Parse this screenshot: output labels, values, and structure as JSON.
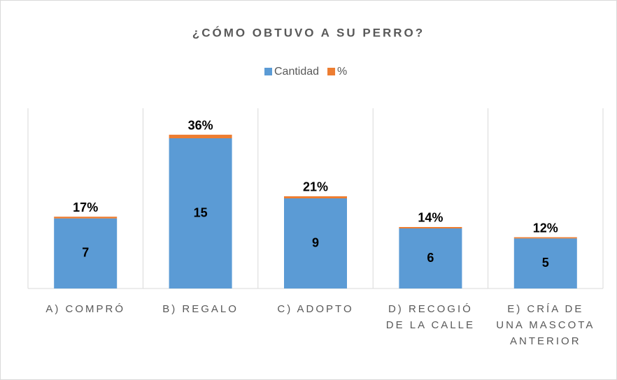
{
  "chart_data": {
    "type": "stacked-bar",
    "title": "¿CÓMO OBTUVO A SU PERRO?",
    "categories": [
      "A) COMPRÓ",
      "B) REGALO",
      "C) ADOPTO",
      "D) RECOGIÓ DE LA CALLE",
      "E) CRÍA DE UNA MASCOTA ANTERIOR"
    ],
    "series": [
      {
        "name": "Cantidad",
        "color": "#5b9bd5",
        "values": [
          7,
          15,
          9,
          6,
          5
        ]
      },
      {
        "name": "%",
        "color": "#ed7d31",
        "values": [
          0.17,
          0.36,
          0.21,
          0.14,
          0.12
        ],
        "value_labels": [
          "17%",
          "36%",
          "21%",
          "14%",
          "12%"
        ]
      }
    ],
    "ylim": [
      0,
      18
    ],
    "legend": "top"
  }
}
